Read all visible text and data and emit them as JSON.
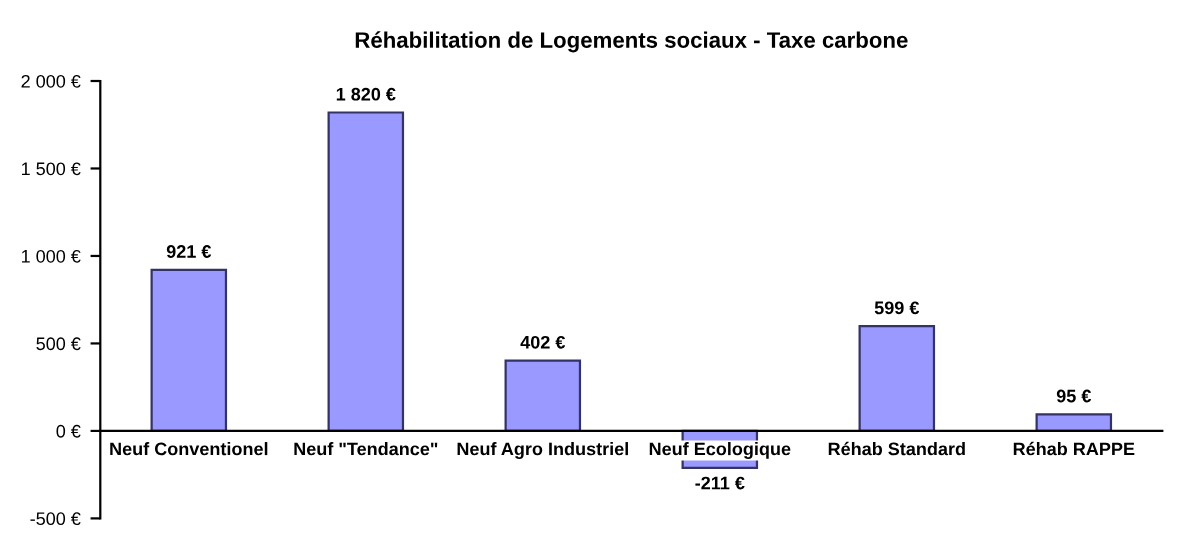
{
  "chart_data": {
    "type": "bar",
    "title": "Réhabilitation de Logements sociaux - Taxe carbone",
    "categories": [
      "Neuf Conventionel",
      "Neuf \"Tendance\"",
      "Neuf Agro Industriel",
      "Neuf Ecologique",
      "Réhab Standard",
      "Réhab RAPPE"
    ],
    "values": [
      921,
      1820,
      402,
      -211,
      599,
      95
    ],
    "value_labels": [
      "921 €",
      "1 820 €",
      "402 €",
      "-211 €",
      "599 €",
      "95 €"
    ],
    "color": "#9999ff",
    "ylim": [
      -500,
      2000
    ],
    "yticks": [
      {
        "value": -500,
        "label": "-500 €"
      },
      {
        "value": 0,
        "label": "0 €"
      },
      {
        "value": 500,
        "label": "500 €"
      },
      {
        "value": 1000,
        "label": "1 000 €"
      },
      {
        "value": 1500,
        "label": "1 500 €"
      },
      {
        "value": 2000,
        "label": "2 000 €"
      }
    ],
    "grid": false,
    "legend": false
  }
}
